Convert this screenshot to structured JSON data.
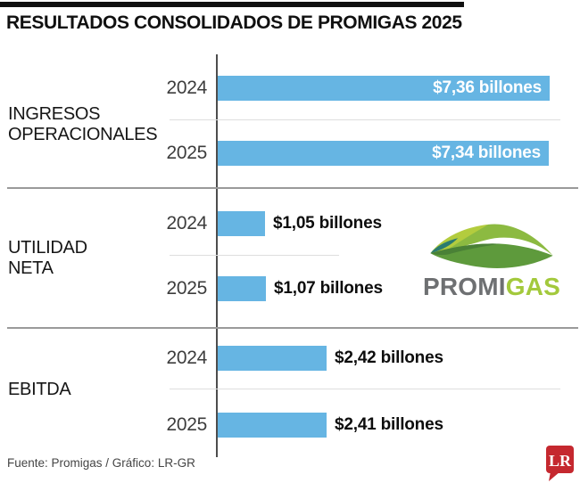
{
  "header": {
    "title": "RESULTADOS CONSOLIDADOS DE PROMIGAS 2025"
  },
  "footer": {
    "credit": "Fuente: Promigas / Gráfico: LR-GR"
  },
  "lr_logo": {
    "text": "LR",
    "color": "#c5282f"
  },
  "promigas_logo": {
    "part_gray": "PROMI",
    "part_green": "GAS",
    "gray_color": "#6e7072",
    "green_color": "#a3c93c"
  },
  "colors": {
    "bar_blue": "#66b5e3",
    "axis_line": "#4d4d4d",
    "group_divider": "#9a9a9a",
    "row_divider": "#dedede",
    "top_accent_bar": "#101010"
  },
  "chart_data": {
    "type": "bar",
    "orientation": "horizontal",
    "value_unit": "billones de pesos",
    "title": "RESULTADOS CONSOLIDADOS DE PROMIGAS 2025",
    "xlim": [
      0,
      8
    ],
    "grid": false,
    "legend": "none",
    "groups": [
      {
        "category": "INGRESOS OPERACIONALES",
        "label_lines": [
          "INGRESOS",
          "OPERACIONALES"
        ],
        "rows": [
          {
            "year": "2024",
            "value": 7.36,
            "value_label": "$7,36 billones",
            "label_position": "inside"
          },
          {
            "year": "2025",
            "value": 7.34,
            "value_label": "$7,34 billones",
            "label_position": "inside"
          }
        ]
      },
      {
        "category": "UTILIDAD NETA",
        "label_lines": [
          "UTILIDAD",
          "NETA"
        ],
        "rows": [
          {
            "year": "2024",
            "value": 1.05,
            "value_label": "$1,05 billones",
            "label_position": "outside"
          },
          {
            "year": "2025",
            "value": 1.07,
            "value_label": "$1,07 billones",
            "label_position": "outside"
          }
        ]
      },
      {
        "category": "EBITDA",
        "label_lines": [
          "EBITDA"
        ],
        "rows": [
          {
            "year": "2024",
            "value": 2.42,
            "value_label": "$2,42 billones",
            "label_position": "outside"
          },
          {
            "year": "2025",
            "value": 2.41,
            "value_label": "$2,41 billones",
            "label_position": "outside"
          }
        ]
      }
    ]
  }
}
